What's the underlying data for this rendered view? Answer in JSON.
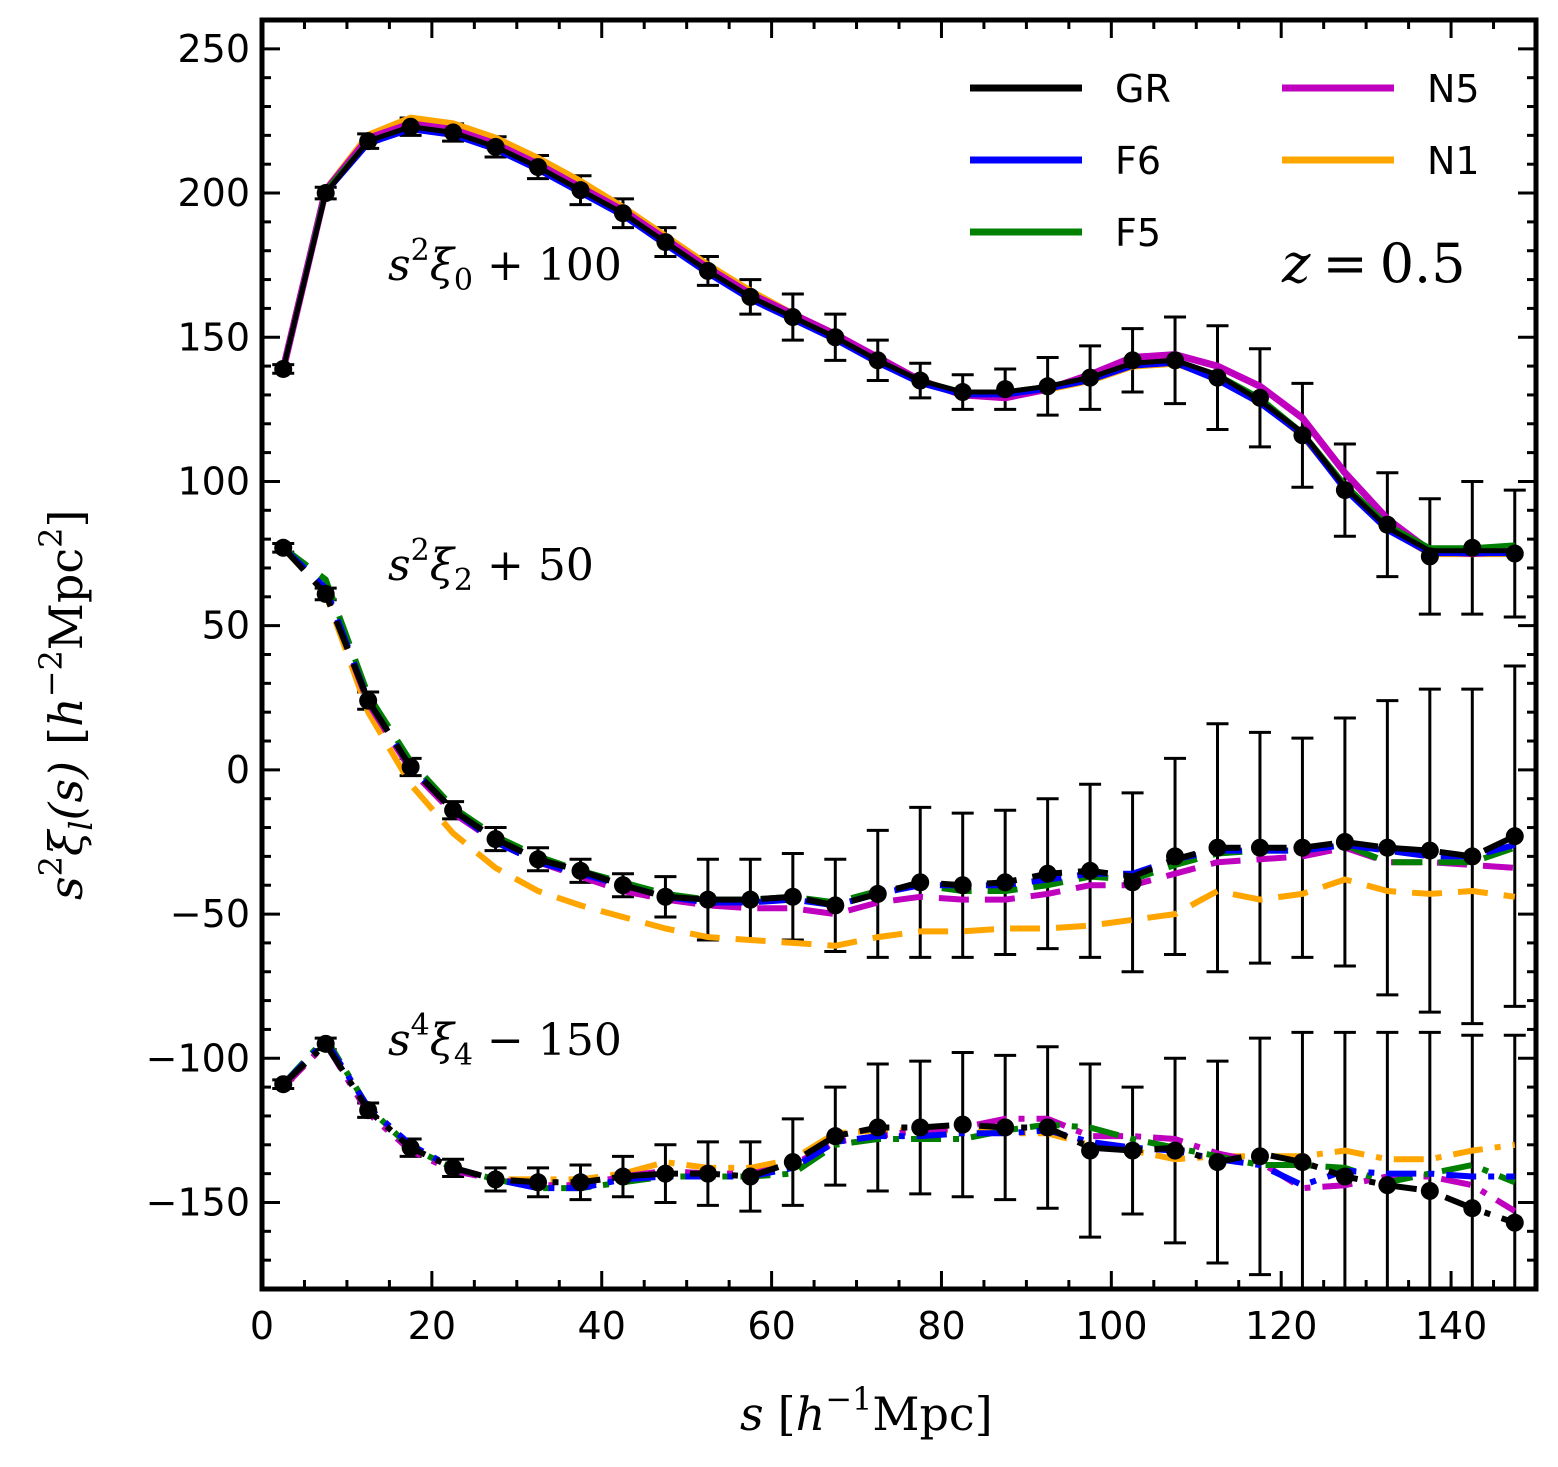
{
  "chart_data": {
    "type": "line",
    "title": "",
    "xlabel": {
      "s": "s",
      "open": "[",
      "h": "h",
      "exp": "−1",
      "unit": "Mpc",
      "close": "]"
    },
    "ylabel": {
      "s": "s",
      "sexp": "2",
      "xi": "ξ",
      "l": "l",
      "arg": "(s)",
      "open": "[",
      "h": "h",
      "exp": "−2",
      "unit": "Mpc",
      "uexp": "2",
      "close": "]"
    },
    "xlim": [
      0,
      150
    ],
    "ylim": [
      -180,
      260
    ],
    "xticks": [
      0,
      20,
      40,
      60,
      80,
      100,
      120,
      140
    ],
    "yticks": [
      -150,
      -100,
      -50,
      0,
      50,
      100,
      150,
      200,
      250
    ],
    "redshift": {
      "z": "z",
      "eq": "=",
      "value": "0.5"
    },
    "legend_position": "top-right",
    "legend": [
      {
        "name": "GR",
        "color": "#000000"
      },
      {
        "name": "F6",
        "color": "#0000ff"
      },
      {
        "name": "F5",
        "color": "#008000"
      },
      {
        "name": "N5",
        "color": "#bf00bf"
      },
      {
        "name": "N1",
        "color": "#ffa500"
      }
    ],
    "x": [
      2.5,
      7.5,
      12.5,
      17.5,
      22.5,
      27.5,
      32.5,
      37.5,
      42.5,
      47.5,
      52.5,
      57.5,
      62.5,
      67.5,
      72.5,
      77.5,
      82.5,
      87.5,
      92.5,
      97.5,
      102.5,
      107.5,
      112.5,
      117.5,
      122.5,
      127.5,
      132.5,
      137.5,
      142.5,
      147.5
    ],
    "multipoles": [
      {
        "name": "monopole",
        "label": {
          "s": "s",
          "exp": "2",
          "xi": "ξ",
          "sub": "0",
          "rest": " + 100"
        },
        "style": "solid",
        "points": [
          139,
          200,
          218,
          223,
          221,
          216,
          209,
          201,
          193,
          183,
          173,
          164,
          157,
          150,
          142,
          135,
          131,
          132,
          133,
          136,
          142,
          142,
          136,
          129,
          116,
          97,
          85,
          74,
          77,
          75
        ],
        "errors": [
          1.5,
          2,
          2.5,
          3,
          3,
          3.5,
          4,
          5,
          5,
          5,
          5,
          6,
          8,
          8,
          7,
          6,
          6,
          7,
          10,
          11,
          11,
          15,
          18,
          17,
          18,
          16,
          18,
          20,
          23,
          22
        ],
        "series": {
          "GR": [
            139,
            200,
            218,
            223,
            221,
            216,
            209,
            201,
            193,
            183,
            173,
            164,
            157,
            150,
            142,
            135,
            131,
            131,
            133,
            136,
            141,
            142,
            137,
            128,
            117,
            98,
            84,
            76,
            76,
            76
          ],
          "F6": [
            139,
            200,
            217,
            222,
            220,
            215,
            208,
            200,
            192,
            182,
            172,
            163,
            156,
            149,
            141,
            134,
            130,
            130,
            132,
            135,
            140,
            141,
            135,
            127,
            116,
            97,
            83,
            75,
            75,
            75
          ],
          "F5": [
            139,
            201,
            218,
            223,
            221,
            216,
            209,
            201,
            193,
            183,
            173,
            164,
            157,
            150,
            142,
            135,
            131,
            131,
            133,
            136,
            141,
            141,
            137,
            129,
            117,
            99,
            85,
            77,
            77,
            78
          ],
          "N5": [
            139,
            201,
            219,
            224,
            222,
            217,
            210,
            202,
            194,
            184,
            174,
            165,
            158,
            151,
            143,
            135,
            130,
            129,
            132,
            137,
            143,
            144,
            140,
            133,
            122,
            103,
            87,
            76,
            75,
            76
          ],
          "N1": [
            139,
            201,
            220,
            226,
            224,
            219,
            212,
            204,
            195,
            185,
            175,
            166,
            158,
            151,
            142,
            135,
            130,
            130,
            132,
            135,
            140,
            141,
            136,
            128,
            116,
            98,
            84,
            75,
            75,
            75
          ]
        }
      },
      {
        "name": "quadrupole",
        "label": {
          "s": "s",
          "exp": "2",
          "xi": "ξ",
          "sub": "2",
          "rest": " + 50"
        },
        "style": "dashed",
        "points": [
          77,
          61,
          24,
          1,
          -14,
          -24,
          -31,
          -35,
          -40,
          -44,
          -45,
          -45,
          -44,
          -47,
          -43,
          -39,
          -40,
          -39,
          -36,
          -35,
          -39,
          -30,
          -27,
          -27,
          -27,
          -25,
          -27,
          -28,
          -30,
          -23
        ],
        "errors": [
          1.5,
          2,
          3,
          3,
          3,
          4,
          4,
          4,
          4,
          7,
          14,
          14,
          15,
          16,
          22,
          26,
          25,
          25,
          26,
          30,
          31,
          34,
          43,
          40,
          38,
          43,
          51,
          56,
          58,
          59
        ],
        "series": {
          "GR": [
            77,
            61,
            24,
            1,
            -14,
            -24,
            -31,
            -35,
            -40,
            -44,
            -45,
            -45,
            -44,
            -47,
            -43,
            -39,
            -40,
            -39,
            -36,
            -35,
            -37,
            -31,
            -27,
            -27,
            -27,
            -25,
            -27,
            -28,
            -30,
            -23
          ],
          "F6": [
            77,
            63,
            24,
            1,
            -14,
            -25,
            -32,
            -36,
            -40,
            -44,
            -46,
            -46,
            -45,
            -47,
            -43,
            -40,
            -40,
            -40,
            -38,
            -36,
            -36,
            -31,
            -28,
            -28,
            -28,
            -26,
            -28,
            -30,
            -30,
            -26
          ],
          "F5": [
            77,
            66,
            26,
            3,
            -13,
            -23,
            -30,
            -35,
            -39,
            -43,
            -45,
            -45,
            -44,
            -46,
            -42,
            -40,
            -42,
            -42,
            -40,
            -37,
            -38,
            -33,
            -29,
            -28,
            -28,
            -26,
            -32,
            -32,
            -32,
            -27
          ],
          "N5": [
            77,
            62,
            23,
            0,
            -15,
            -25,
            -32,
            -37,
            -42,
            -45,
            -47,
            -48,
            -48,
            -50,
            -46,
            -44,
            -45,
            -45,
            -43,
            -40,
            -40,
            -36,
            -32,
            -31,
            -30,
            -27,
            -32,
            -32,
            -33,
            -34
          ],
          "N1": [
            77,
            61,
            20,
            -5,
            -22,
            -34,
            -42,
            -47,
            -51,
            -55,
            -58,
            -59,
            -60,
            -61,
            -58,
            -56,
            -56,
            -55,
            -55,
            -54,
            -52,
            -50,
            -42,
            -45,
            -43,
            -38,
            -42,
            -43,
            -42,
            -44
          ]
        }
      },
      {
        "name": "hexadecapole",
        "label": {
          "s": "s",
          "exp": "4",
          "xi": "ξ",
          "sub": "4",
          "rest": " − 150"
        },
        "style": "dashdot",
        "points": [
          -109,
          -95,
          -118,
          -131,
          -138,
          -142,
          -143,
          -143,
          -141,
          -140,
          -140,
          -141,
          -136,
          -127,
          -124,
          -124,
          -123,
          -124,
          -124,
          -132,
          -132,
          -132,
          -136,
          -134,
          -136,
          -141,
          -144,
          -146,
          -152,
          -157
        ],
        "errors": [
          1.5,
          2,
          2.5,
          3,
          3,
          4,
          5,
          6,
          7,
          10,
          11,
          12,
          15,
          17,
          22,
          23,
          25,
          25,
          28,
          30,
          22,
          32,
          35,
          41,
          45,
          50,
          53,
          55,
          60,
          65
        ],
        "series": {
          "GR": [
            -109,
            -95,
            -118,
            -131,
            -138,
            -142,
            -143,
            -143,
            -141,
            -140,
            -140,
            -141,
            -136,
            -127,
            -124,
            -124,
            -123,
            -124,
            -124,
            -131,
            -132,
            -131,
            -136,
            -133,
            -136,
            -141,
            -144,
            -146,
            -152,
            -157
          ],
          "F6": [
            -109,
            -94,
            -117,
            -130,
            -138,
            -142,
            -145,
            -145,
            -142,
            -141,
            -141,
            -141,
            -138,
            -129,
            -127,
            -127,
            -126,
            -126,
            -125,
            -129,
            -131,
            -132,
            -135,
            -137,
            -144,
            -139,
            -140,
            -140,
            -141,
            -141
          ],
          "F5": [
            -109,
            -93,
            -117,
            -131,
            -138,
            -142,
            -145,
            -145,
            -143,
            -141,
            -141,
            -141,
            -140,
            -130,
            -128,
            -128,
            -128,
            -125,
            -123,
            -124,
            -128,
            -131,
            -134,
            -137,
            -137,
            -138,
            -143,
            -140,
            -137,
            -143
          ],
          "N5": [
            -110,
            -95,
            -119,
            -132,
            -139,
            -142,
            -144,
            -144,
            -141,
            -139,
            -140,
            -140,
            -137,
            -129,
            -127,
            -125,
            -124,
            -121,
            -121,
            -127,
            -127,
            -128,
            -133,
            -136,
            -145,
            -144,
            -141,
            -141,
            -144,
            -153
          ],
          "N1": [
            -110,
            -95,
            -118,
            -131,
            -138,
            -142,
            -142,
            -142,
            -140,
            -136,
            -138,
            -138,
            -135,
            -126,
            -125,
            -125,
            -125,
            -126,
            -126,
            -130,
            -132,
            -135,
            -134,
            -134,
            -134,
            -132,
            -135,
            -135,
            -132,
            -130
          ]
        }
      }
    ]
  }
}
